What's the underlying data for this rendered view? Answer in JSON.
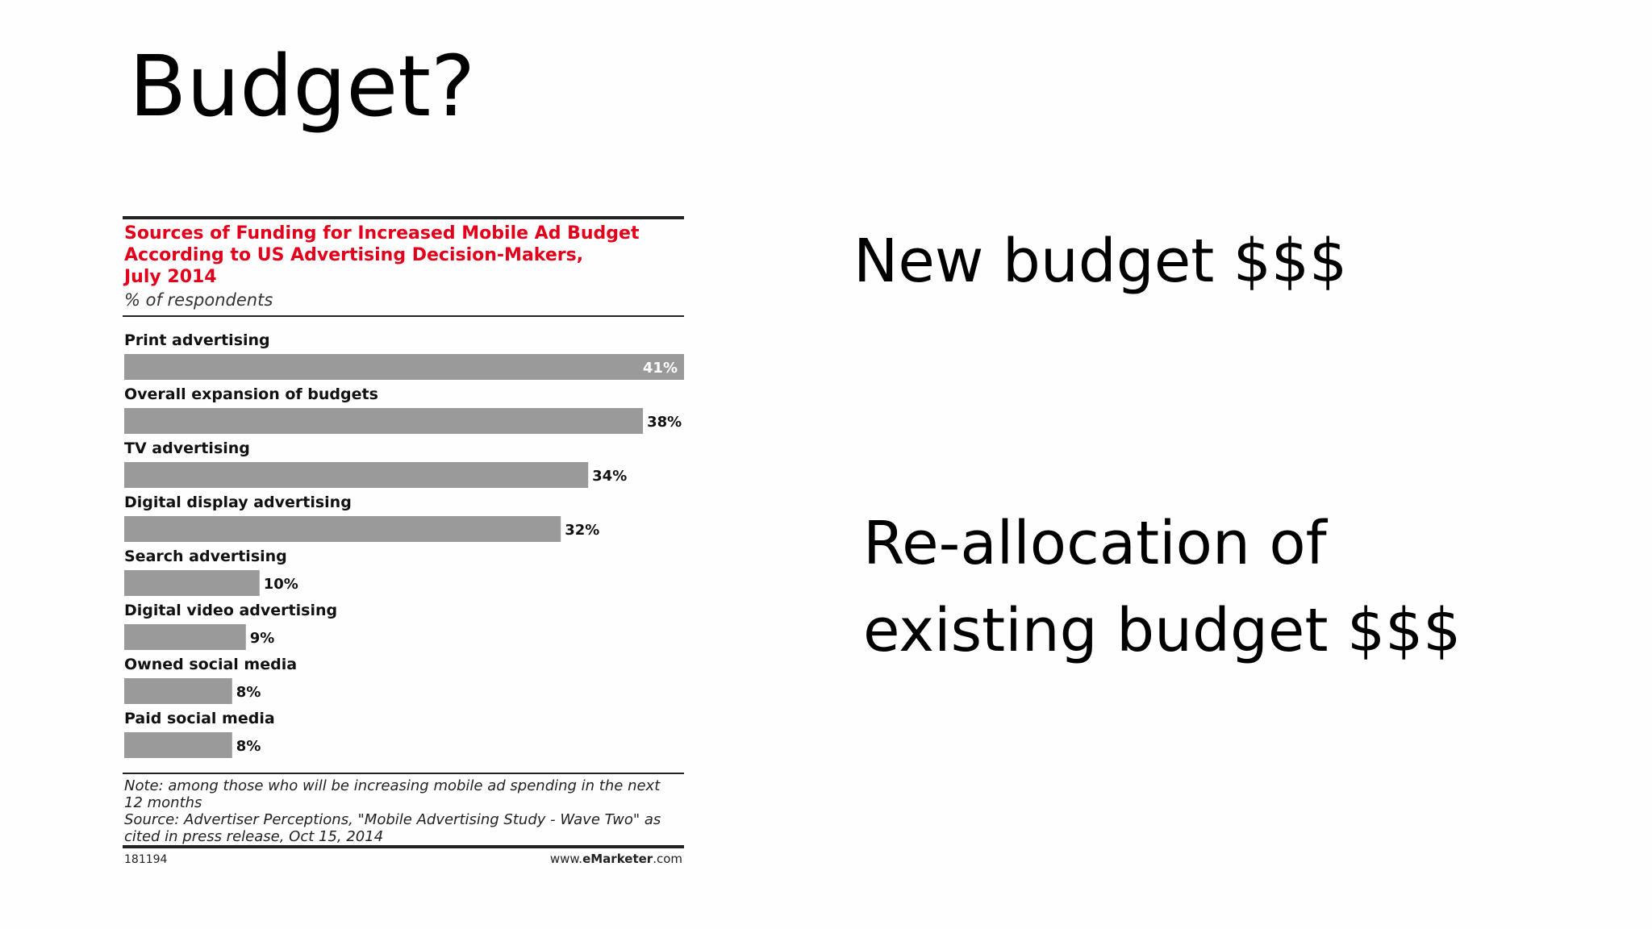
{
  "slide": {
    "title": "Budget?",
    "points": [
      "New budget $$$",
      "Re-allocation of existing budget $$$"
    ],
    "point_lines": {
      "realloc_line1": "Re-allocation of",
      "realloc_line2": "existing budget $$$"
    }
  },
  "colors": {
    "title_red": "#e3001b",
    "bar_gray": "#9a9a9a",
    "label_white": "#ffffff",
    "rule_dark": "#222222",
    "brand_red": "#e3001b"
  },
  "chart_data": {
    "type": "bar",
    "orientation": "horizontal",
    "title": "Sources of Funding for Increased Mobile Ad Budget According to US Advertising Decision-Makers, July 2014",
    "title_lines": [
      "Sources of Funding for Increased Mobile Ad Budget",
      "According to US Advertising Decision-Makers,",
      "July 2014"
    ],
    "subtitle": "% of respondents",
    "categories": [
      "Print advertising",
      "Overall expansion of budgets",
      "TV advertising",
      "Digital display advertising",
      "Search advertising",
      "Digital video advertising",
      "Owned social media",
      "Paid social media"
    ],
    "values": [
      41,
      38,
      34,
      32,
      10,
      9,
      8,
      8
    ],
    "value_labels": [
      "41%",
      "38%",
      "34%",
      "32%",
      "10%",
      "9%",
      "8%",
      "8%"
    ],
    "xlim": [
      0,
      41
    ],
    "grid": false,
    "note_lines": [
      "Note: among those who will be increasing mobile ad spending in the next",
      "12 months",
      "Source: Advertiser Perceptions, \"Mobile Advertising Study - Wave Two\" as",
      "cited in press release, Oct 15, 2014"
    ],
    "chart_id": "181194",
    "brand": {
      "prefix": "www.",
      "highlight": "eMarketer",
      "suffix": ".com"
    }
  }
}
